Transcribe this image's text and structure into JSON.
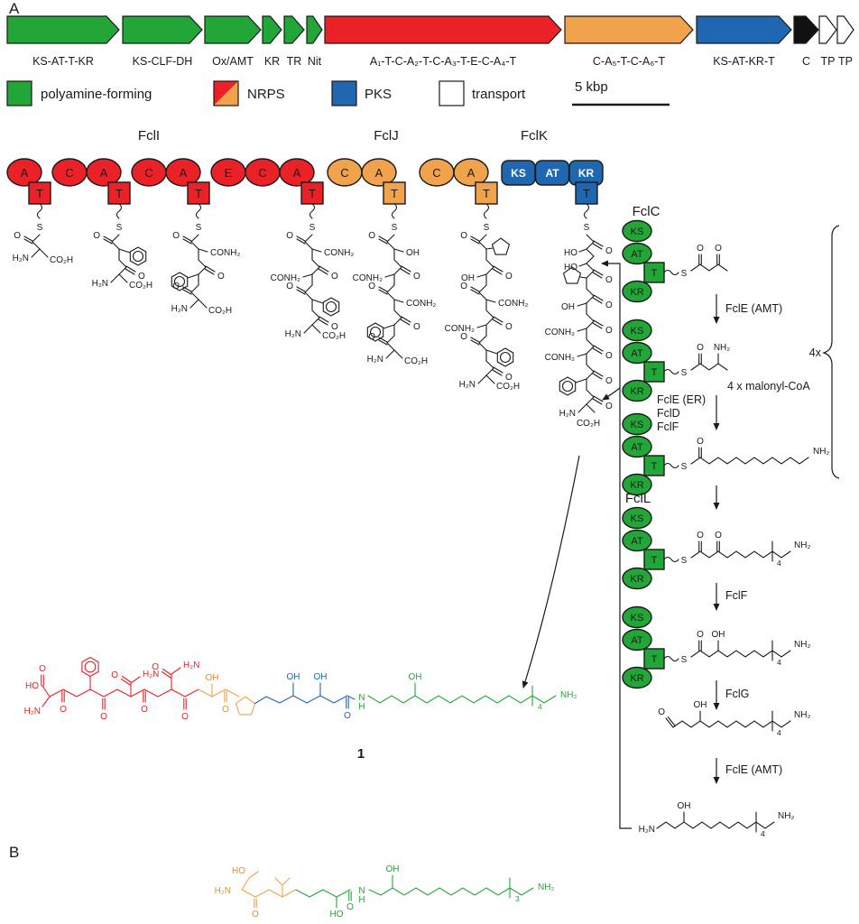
{
  "panels": {
    "a": "A",
    "b": "B"
  },
  "colors": {
    "green": "#23a638",
    "red": "#ea2127",
    "orange": "#f0a24d",
    "blue": "#1f67b1",
    "black": "#111111",
    "white": "#ffffff"
  },
  "gene_cluster": {
    "genes": [
      {
        "id": "fclC",
        "label": "KS-AT-T-KR",
        "type": "polyamine"
      },
      {
        "id": "fclD",
        "label": "KS-CLF-DH",
        "type": "polyamine"
      },
      {
        "id": "fclE",
        "label": "Ox/AMT",
        "type": "polyamine"
      },
      {
        "id": "fclF",
        "label": "KR",
        "type": "polyamine"
      },
      {
        "id": "fclG",
        "label": "TR",
        "type": "polyamine"
      },
      {
        "id": "fclH",
        "label": "Nit",
        "type": "polyamine"
      },
      {
        "id": "fclI",
        "label": "A₁-T-C-A₂-T-C-A₃-T-E-C-A₄-T",
        "type": "nrps"
      },
      {
        "id": "fclJ",
        "label": "C-A₅-T-C-A₆-T",
        "type": "nrps2"
      },
      {
        "id": "fclK",
        "label": "KS-AT-KR-T",
        "type": "pks"
      },
      {
        "id": "fclL",
        "label": "C",
        "type": "condensation"
      },
      {
        "id": "tp1",
        "label": "TP",
        "type": "transport"
      },
      {
        "id": "tp2",
        "label": "TP",
        "type": "transport"
      }
    ]
  },
  "legend": {
    "items": [
      {
        "label": "polyamine-forming",
        "swatch": "green"
      },
      {
        "label": "NRPS",
        "swatch": "split"
      },
      {
        "label": "PKS",
        "swatch": "blue"
      },
      {
        "label": "transport",
        "swatch": "white"
      }
    ],
    "scale_label": "5 kbp"
  },
  "nrps_modules": [
    {
      "name": "FclI",
      "color": "red",
      "domains": [
        "A",
        "T",
        "C",
        "A",
        "T",
        "C",
        "A",
        "T",
        "E",
        "C",
        "A",
        "T"
      ]
    },
    {
      "name": "FclJ",
      "color": "orange",
      "domains": [
        "C",
        "A",
        "T",
        "C",
        "A",
        "T"
      ]
    },
    {
      "name": "FclK",
      "color": "blue",
      "domains": [
        "KS",
        "AT",
        "KR",
        "T"
      ]
    }
  ],
  "atom_labels": {
    "S": "S",
    "O": "O",
    "HO": "HO",
    "OH": "OH",
    "H2N": "H₂N",
    "NH2": "NH₂",
    "CO2H": "CO₂H",
    "CONH2": "CONH₂",
    "N": "N",
    "H": "H",
    "sub4": "4",
    "sub3": "3"
  },
  "nrps_chains": [
    {
      "module": "FclI-T1",
      "residues": [
        "Asp"
      ]
    },
    {
      "module": "FclI-T2",
      "residues": [
        "Phe",
        "Asp"
      ]
    },
    {
      "module": "FclI-T3",
      "residues": [
        "Asn",
        "Phe",
        "Asp"
      ]
    },
    {
      "module": "FclI-T4",
      "residues": [
        "Asn",
        "Asn",
        "Phe",
        "Asp"
      ]
    },
    {
      "module": "FclJ-T1",
      "residues": [
        "Thr",
        "Asn",
        "Asn",
        "Phe",
        "Asp"
      ]
    },
    {
      "module": "FclJ-T2",
      "residues": [
        "Pro",
        "Thr",
        "Asn",
        "Asn",
        "Phe",
        "Asp"
      ]
    },
    {
      "module": "FclK-T",
      "residues": [
        "Sta",
        "Pro",
        "Thr",
        "Asn",
        "Asn",
        "Phe",
        "Asp"
      ]
    }
  ],
  "pathway": {
    "fclc_label": "FclC",
    "fcll_label": "FclL",
    "stack_domains": [
      "KS",
      "AT",
      "T",
      "KR"
    ],
    "multiplier": "4x",
    "steps": {
      "amt1": "FclE (AMT)",
      "malonyl": "4 x malonyl-CoA",
      "side": [
        "FclE (ER)",
        "FclD",
        "FclF"
      ],
      "kr": "FclF",
      "tr": "FclG",
      "amt2": "FclE (AMT)"
    }
  },
  "compound1": {
    "number": "1"
  }
}
